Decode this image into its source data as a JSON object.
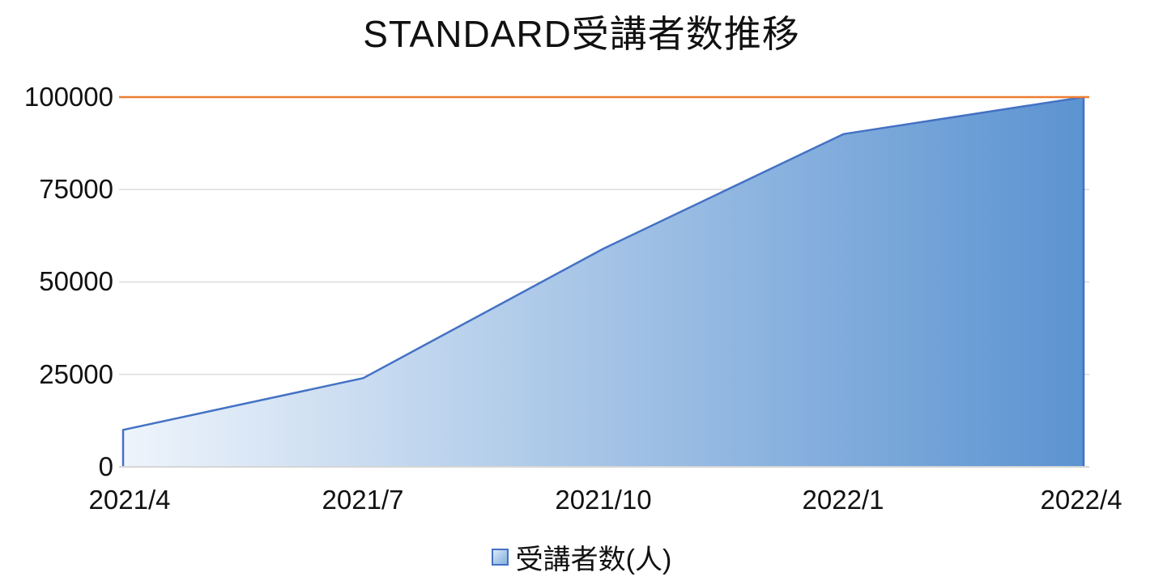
{
  "chart_data": {
    "type": "area",
    "title": "STANDARD受講者数推移",
    "categories": [
      "2021/4",
      "2021/7",
      "2021/10",
      "2022/1",
      "2022/4"
    ],
    "series": [
      {
        "name": "受講者数(人)",
        "values": [
          10000,
          24000,
          59000,
          90000,
          100000
        ]
      }
    ],
    "target_line": {
      "value": 100000,
      "color": "#ED7D31"
    },
    "xlabel": "",
    "ylabel": "",
    "ylim": [
      0,
      100000
    ],
    "yticks": [
      0,
      25000,
      50000,
      75000,
      100000
    ],
    "ytick_labels_top_to_bottom": [
      "100000",
      "75000",
      "50000",
      "25000",
      "0"
    ],
    "grid": true,
    "legend": {
      "position": "bottom-center",
      "entries": [
        {
          "label": "受講者数(人)",
          "marker_border_color": "#4472C4"
        }
      ]
    },
    "colors": {
      "series_line": "#4472C4",
      "fill_gradient_left": "#eef4fb",
      "fill_gradient_right": "#5b93d1",
      "gridline": "#dcdcdc",
      "axis_line": "#d6d6d6",
      "target_line": "#ED7D31",
      "text": "#111111"
    }
  }
}
